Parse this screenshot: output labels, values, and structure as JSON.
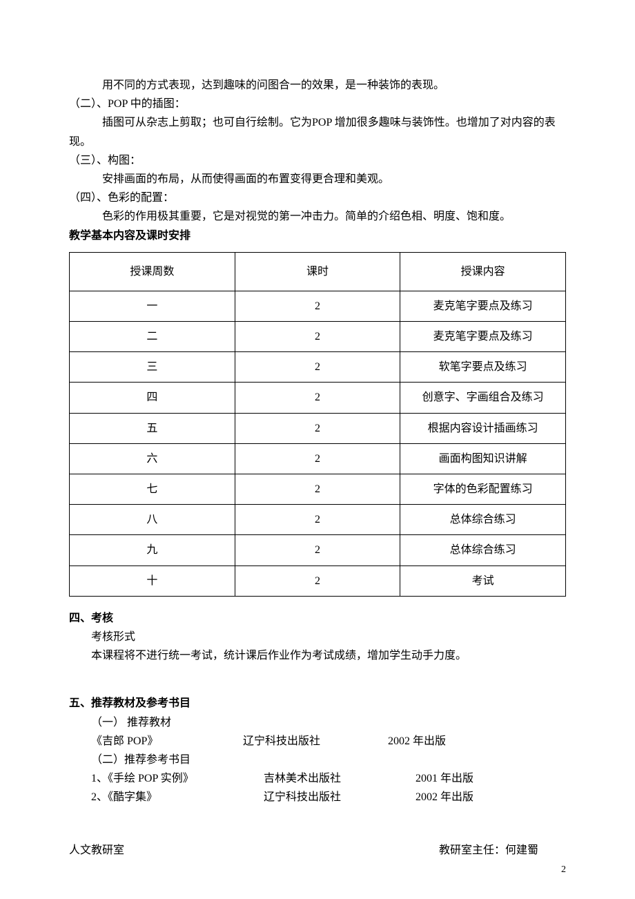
{
  "paragraphs": {
    "p1": "用不同的方式表现，达到趣味的问图合一的效果，是一种装饰的表现。",
    "p2_title": "（二）、POP 中的插图：",
    "p2_body": "插图可从杂志上剪取；也可自行绘制。它为POP 增加很多趣味与装饰性。也增加了对内容的表现。",
    "p3_title": "（三）、构图：",
    "p3_body": "安排画面的布局，从而使得画面的布置变得更合理和美观。",
    "p4_title": "（四）、色彩的配置：",
    "p4_body": "色彩的作用极其重要，它是对视觉的第一冲击力。简单的介绍色相、明度、饱和度。"
  },
  "schedule_heading": "教学基本内容及课时安排",
  "table": {
    "headers": [
      "授课周数",
      "课时",
      "授课内容"
    ],
    "rows": [
      [
        "一",
        "2",
        "麦克笔字要点及练习"
      ],
      [
        "二",
        "2",
        "麦克笔字要点及练习"
      ],
      [
        "三",
        "2",
        "软笔字要点及练习"
      ],
      [
        "四",
        "2",
        "创意字、字画组合及练习"
      ],
      [
        "五",
        "2",
        "根据内容设计插画练习"
      ],
      [
        "六",
        "2",
        "画面构图知识讲解"
      ],
      [
        "七",
        "2",
        "字体的色彩配置练习"
      ],
      [
        "八",
        "2",
        "总体综合练习"
      ],
      [
        "九",
        "2",
        "总体综合练习"
      ],
      [
        "十",
        "2",
        "考试"
      ]
    ]
  },
  "section4": {
    "title": "四、考核",
    "sub": "考核形式",
    "body": "本课程将不进行统一考试，统计课后作业作为考试成绩，增加学生动手力度。"
  },
  "section5": {
    "title": "五、推荐教材及参考书目",
    "rec_heading": "（一） 推荐教材",
    "rec_book": {
      "title": "《吉郎 POP》",
      "press": "辽宁科技出版社",
      "year": "2002 年出版"
    },
    "ref_heading": "（二）推荐参考书目",
    "ref_books": [
      {
        "title": "1、《手绘 POP 实例》",
        "press": "吉林美术出版社",
        "year": "2001 年出版"
      },
      {
        "title": "2、《酷字集》",
        "press": "辽宁科技出版社",
        "year": "2002 年出版"
      }
    ]
  },
  "footer": {
    "office": "人文教研室",
    "director": "教研室主任：何建蜀"
  },
  "page_number": "2"
}
